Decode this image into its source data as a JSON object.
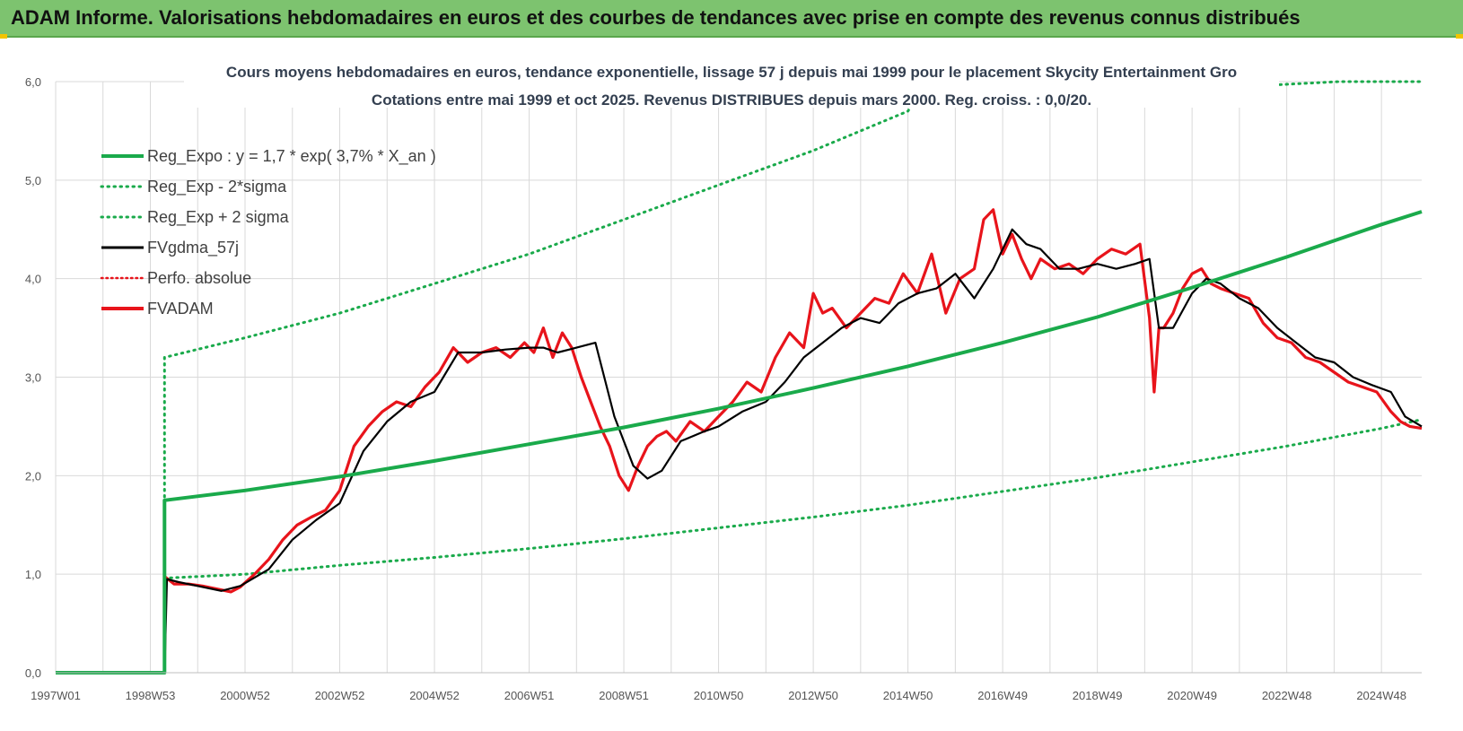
{
  "header": {
    "title": "ADAM Informe. Valorisations hebdomadaires en euros et des courbes de tendances avec prise en compte des revenus connus distribués"
  },
  "colors": {
    "banner": "#7dc36f",
    "reg_expo": "#1aaa4b",
    "band": "#1aaa4b",
    "fvgdma": "#000000",
    "fvadam": "#e8141b",
    "perfo": "#e8141b",
    "grid": "#d9d9d9"
  },
  "chart_data": {
    "type": "line",
    "title": "Cours moyens hebdomadaires en euros, tendance exponentielle, lissage 57 j depuis mai 1999 pour le placement Skycity Entertainment Gro",
    "subtitle": "Cotations entre mai 1999 et oct 2025.  Revenus DISTRIBUES depuis mars 2000. Reg. croiss. : 0,0/20.",
    "xlabel": "",
    "ylabel": "",
    "x_range": [
      1997.0,
      2025.85
    ],
    "ylim": [
      0,
      6
    ],
    "yticks": [
      "0,0",
      "1,0",
      "2,0",
      "3,0",
      "4,0",
      "5,0",
      "6,0"
    ],
    "xticks": [
      {
        "label": "1997W01",
        "x": 1997.0
      },
      {
        "label": "1998W53",
        "x": 1999.0
      },
      {
        "label": "2000W52",
        "x": 2001.0
      },
      {
        "label": "2002W52",
        "x": 2003.0
      },
      {
        "label": "2004W52",
        "x": 2005.0
      },
      {
        "label": "2006W51",
        "x": 2007.0
      },
      {
        "label": "2008W51",
        "x": 2009.0
      },
      {
        "label": "2010W50",
        "x": 2011.0
      },
      {
        "label": "2012W50",
        "x": 2013.0
      },
      {
        "label": "2014W50",
        "x": 2015.0
      },
      {
        "label": "2016W49",
        "x": 2017.0
      },
      {
        "label": "2018W49",
        "x": 2019.0
      },
      {
        "label": "2020W49",
        "x": 2021.0
      },
      {
        "label": "2022W48",
        "x": 2023.0
      },
      {
        "label": "2024W48",
        "x": 2025.0
      }
    ],
    "grid": true,
    "legend_position": "top-left",
    "legend": [
      {
        "label": "Reg_Expo : y = 1,7 * exp( 3,7% *  X_an )",
        "style": "solid-green"
      },
      {
        "label": "Reg_Exp - 2*sigma",
        "style": "dotted-green"
      },
      {
        "label": "Reg_Exp + 2 sigma",
        "style": "dotted-green"
      },
      {
        "label": "FVgdma_57j",
        "style": "solid-black"
      },
      {
        "label": "Perfo. absolue",
        "style": "dotted-red"
      },
      {
        "label": "FVADAM",
        "style": "solid-red"
      }
    ],
    "series": [
      {
        "name": "Reg_Expo : y = 1,7 * exp( 3,7% *  X_an )",
        "x": [
          1997.0,
          1999.3,
          1999.3,
          2001,
          2003,
          2005,
          2007,
          2009,
          2011,
          2013,
          2015,
          2017,
          2019,
          2021,
          2023,
          2025,
          2025.85
        ],
        "y": [
          0,
          0,
          1.75,
          1.85,
          1.99,
          2.15,
          2.32,
          2.49,
          2.68,
          2.89,
          3.11,
          3.35,
          3.61,
          3.91,
          4.22,
          4.55,
          4.68
        ]
      },
      {
        "name": "Reg_Exp - 2*sigma",
        "x": [
          1999.3,
          1999.3,
          2001,
          2003,
          2005,
          2007,
          2009,
          2011,
          2013,
          2015,
          2017,
          2019,
          2021,
          2023,
          2025,
          2025.85
        ],
        "y": [
          0.0,
          0.96,
          1.0,
          1.09,
          1.17,
          1.26,
          1.36,
          1.47,
          1.58,
          1.7,
          1.84,
          1.98,
          2.14,
          2.3,
          2.48,
          2.57
        ]
      },
      {
        "name": "Reg_Exp + 2 sigma",
        "x": [
          1999.3,
          1999.3,
          2001,
          2003,
          2005,
          2007,
          2009,
          2011,
          2013,
          2015,
          2015.1,
          2024.1,
          2025.85
        ],
        "y": [
          0.0,
          3.2,
          3.4,
          3.65,
          3.95,
          4.25,
          4.6,
          4.95,
          5.3,
          5.7,
          5.78,
          6.0,
          6.0
        ]
      },
      {
        "name": "FVgdma_57j",
        "x": [
          1999.3,
          1999.35,
          1999.6,
          2000.0,
          2000.5,
          2000.9,
          2001.5,
          2002.0,
          2002.5,
          2003.0,
          2003.5,
          2004.0,
          2004.5,
          2005.0,
          2005.5,
          2006.0,
          2006.5,
          2007.0,
          2007.3,
          2007.6,
          2008.0,
          2008.4,
          2008.8,
          2009.2,
          2009.5,
          2009.8,
          2010.2,
          2010.7,
          2011.0,
          2011.5,
          2012.0,
          2012.4,
          2012.8,
          2013.2,
          2013.6,
          2014.0,
          2014.4,
          2014.8,
          2015.2,
          2015.6,
          2016.0,
          2016.4,
          2016.8,
          2017.2,
          2017.5,
          2017.8,
          2018.2,
          2018.6,
          2019.0,
          2019.4,
          2019.8,
          2020.1,
          2020.3,
          2020.6,
          2021.0,
          2021.3,
          2021.6,
          2022.0,
          2022.4,
          2022.8,
          2023.2,
          2023.6,
          2024.0,
          2024.4,
          2024.8,
          2025.2,
          2025.5,
          2025.85
        ],
        "y": [
          0.0,
          0.95,
          0.92,
          0.88,
          0.83,
          0.88,
          1.05,
          1.35,
          1.55,
          1.72,
          2.25,
          2.55,
          2.75,
          2.85,
          3.25,
          3.25,
          3.28,
          3.3,
          3.3,
          3.25,
          3.3,
          3.35,
          2.6,
          2.1,
          1.97,
          2.05,
          2.35,
          2.45,
          2.5,
          2.65,
          2.75,
          2.95,
          3.2,
          3.35,
          3.5,
          3.6,
          3.55,
          3.75,
          3.85,
          3.9,
          4.05,
          3.8,
          4.1,
          4.5,
          4.35,
          4.3,
          4.1,
          4.1,
          4.15,
          4.1,
          4.15,
          4.2,
          3.5,
          3.5,
          3.85,
          4.0,
          3.95,
          3.8,
          3.7,
          3.5,
          3.35,
          3.2,
          3.15,
          3.0,
          2.92,
          2.85,
          2.6,
          2.5
        ]
      },
      {
        "name": "FVADAM",
        "x": [
          1999.3,
          1999.32,
          1999.5,
          1999.8,
          2000.1,
          2000.4,
          2000.7,
          2000.9,
          2001.2,
          2001.5,
          2001.8,
          2002.1,
          2002.4,
          2002.7,
          2003.0,
          2003.3,
          2003.6,
          2003.9,
          2004.2,
          2004.5,
          2004.8,
          2005.1,
          2005.4,
          2005.7,
          2006.0,
          2006.3,
          2006.6,
          2006.9,
          2007.1,
          2007.3,
          2007.5,
          2007.7,
          2007.9,
          2008.1,
          2008.3,
          2008.5,
          2008.7,
          2008.9,
          2009.1,
          2009.3,
          2009.5,
          2009.7,
          2009.9,
          2010.1,
          2010.4,
          2010.7,
          2011.0,
          2011.3,
          2011.6,
          2011.9,
          2012.2,
          2012.5,
          2012.8,
          2013.0,
          2013.2,
          2013.4,
          2013.7,
          2014.0,
          2014.3,
          2014.6,
          2014.9,
          2015.2,
          2015.5,
          2015.8,
          2016.1,
          2016.4,
          2016.6,
          2016.8,
          2017.0,
          2017.2,
          2017.4,
          2017.6,
          2017.8,
          2018.1,
          2018.4,
          2018.7,
          2019.0,
          2019.3,
          2019.6,
          2019.9,
          2020.1,
          2020.2,
          2020.3,
          2020.4,
          2020.6,
          2020.8,
          2021.0,
          2021.2,
          2021.4,
          2021.6,
          2021.9,
          2022.2,
          2022.5,
          2022.8,
          2023.1,
          2023.4,
          2023.7,
          2024.0,
          2024.3,
          2024.6,
          2024.9,
          2025.2,
          2025.4,
          2025.6,
          2025.85
        ],
        "y": [
          0.0,
          0.97,
          0.9,
          0.9,
          0.88,
          0.85,
          0.82,
          0.87,
          1.0,
          1.15,
          1.35,
          1.5,
          1.58,
          1.65,
          1.85,
          2.3,
          2.5,
          2.65,
          2.75,
          2.7,
          2.9,
          3.05,
          3.3,
          3.15,
          3.25,
          3.3,
          3.2,
          3.35,
          3.25,
          3.5,
          3.2,
          3.45,
          3.3,
          3.0,
          2.75,
          2.5,
          2.3,
          2.0,
          1.85,
          2.1,
          2.3,
          2.4,
          2.45,
          2.35,
          2.55,
          2.45,
          2.6,
          2.75,
          2.95,
          2.85,
          3.2,
          3.45,
          3.3,
          3.85,
          3.65,
          3.7,
          3.5,
          3.65,
          3.8,
          3.75,
          4.05,
          3.85,
          4.25,
          3.65,
          4.0,
          4.1,
          4.6,
          4.7,
          4.25,
          4.45,
          4.2,
          4.0,
          4.2,
          4.1,
          4.15,
          4.05,
          4.2,
          4.3,
          4.25,
          4.35,
          3.6,
          2.85,
          3.5,
          3.5,
          3.65,
          3.9,
          4.05,
          4.1,
          3.95,
          3.9,
          3.85,
          3.8,
          3.55,
          3.4,
          3.35,
          3.2,
          3.15,
          3.05,
          2.95,
          2.9,
          2.85,
          2.65,
          2.55,
          2.5,
          2.48
        ]
      }
    ]
  }
}
